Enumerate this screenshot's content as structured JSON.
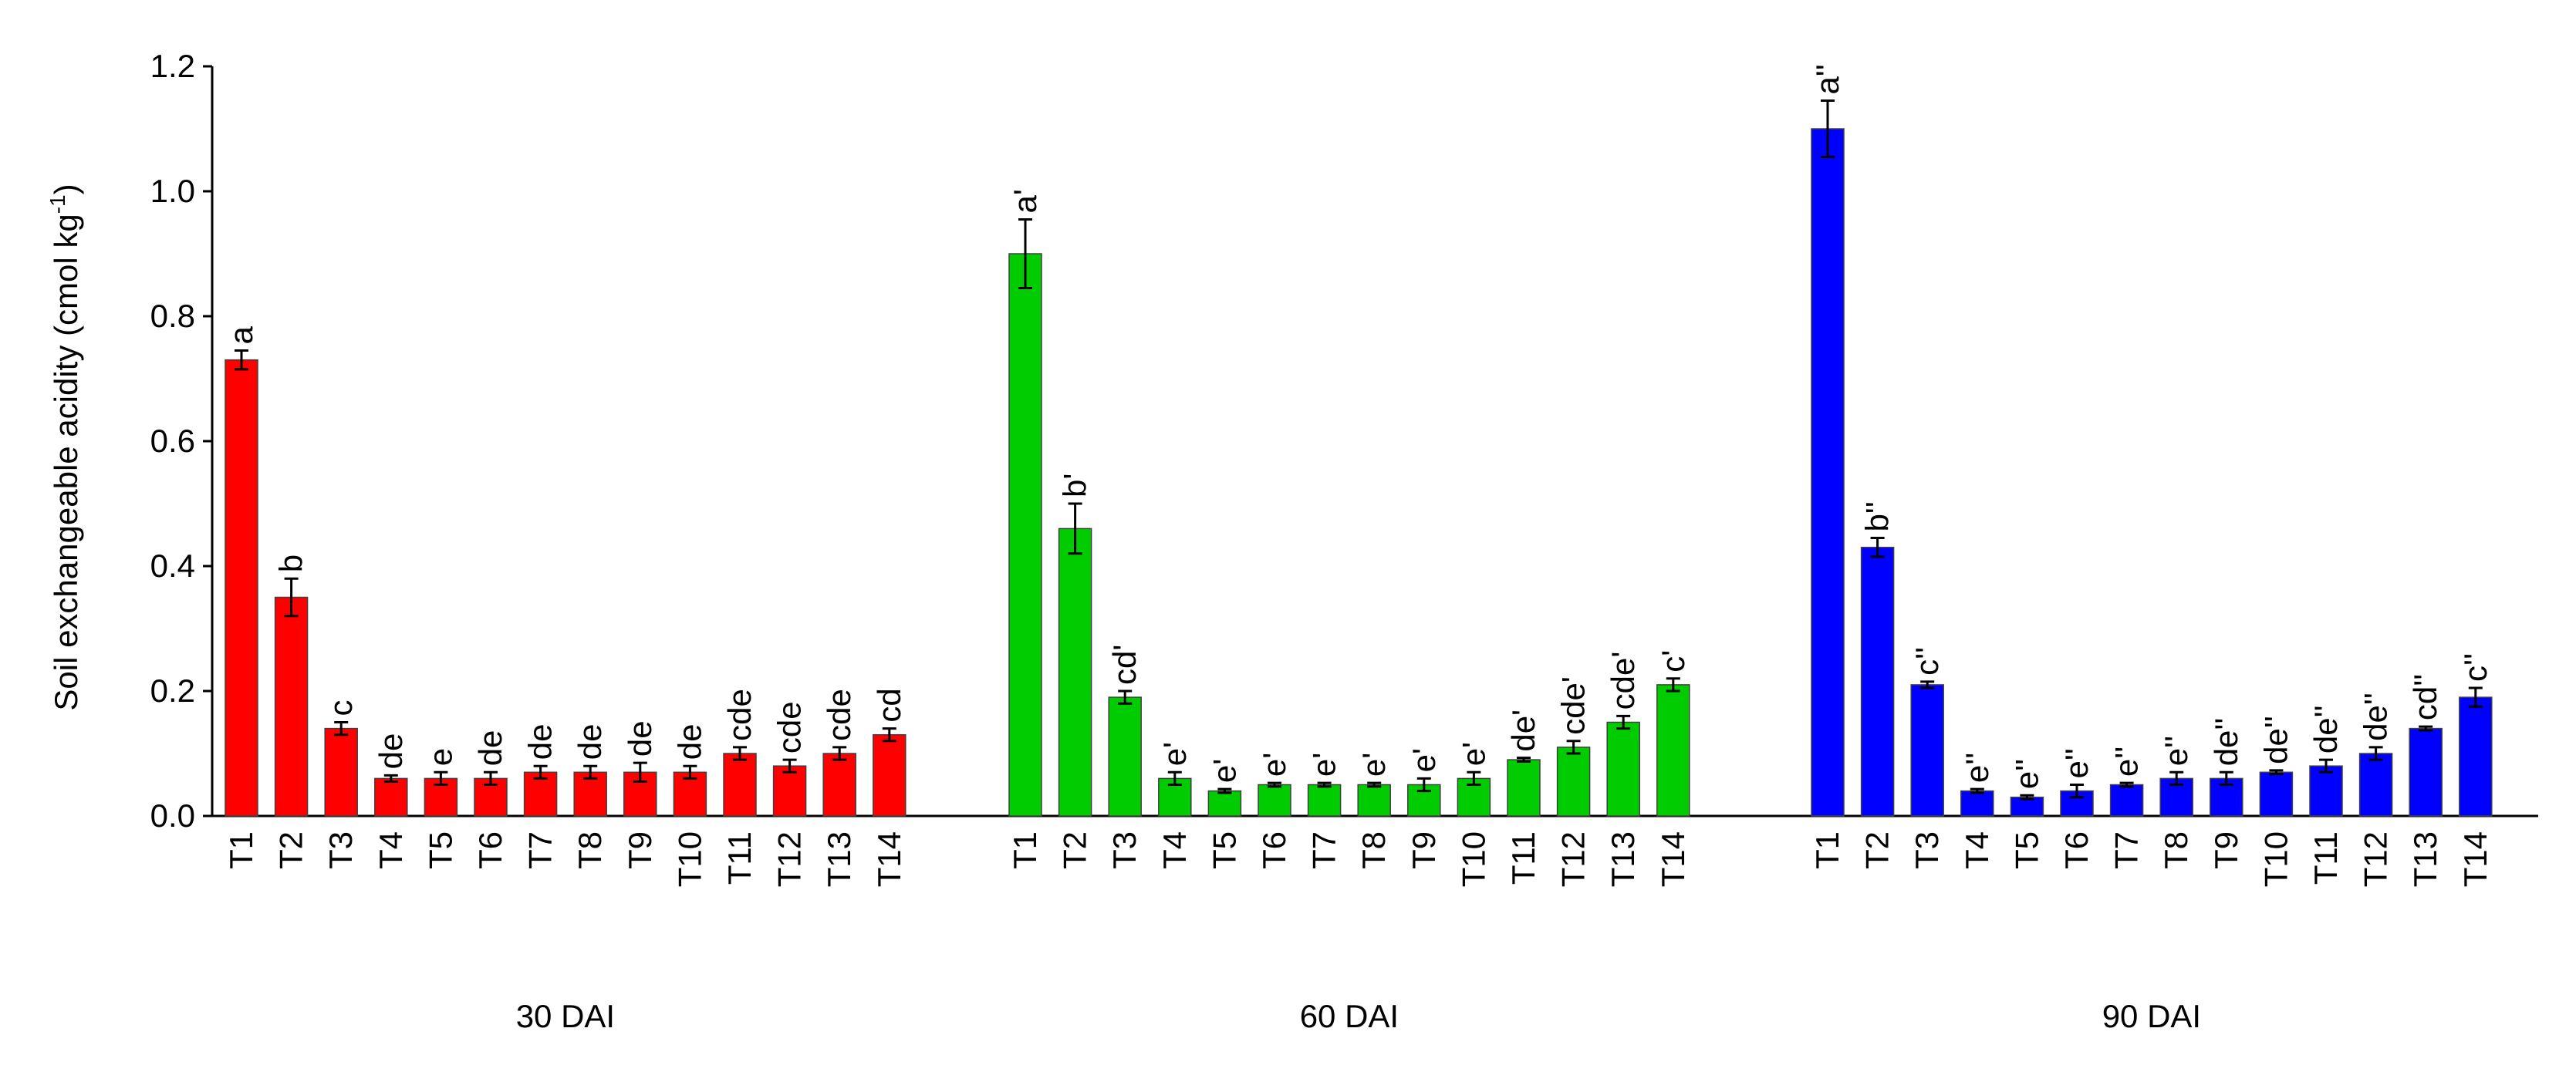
{
  "chart_data": {
    "type": "bar",
    "ylabel": "Soil exchangeable acidity (cmol kg",
    "ylabel_superscript": "-1",
    "ylabel_close": ")",
    "ylim": [
      0,
      1.2
    ],
    "yticks": [
      "0.0",
      "0.2",
      "0.4",
      "0.6",
      "0.8",
      "1.0",
      "1.2"
    ],
    "grid": false,
    "groups": [
      {
        "name": "30 DAI",
        "color": "#ff0000",
        "categories": [
          "T1",
          "T2",
          "T3",
          "T4",
          "T5",
          "T6",
          "T7",
          "T8",
          "T9",
          "T10",
          "T11",
          "T12",
          "T13",
          "T14"
        ],
        "values": [
          0.73,
          0.35,
          0.14,
          0.06,
          0.06,
          0.06,
          0.07,
          0.07,
          0.07,
          0.07,
          0.1,
          0.08,
          0.1,
          0.13
        ],
        "errors": [
          0.015,
          0.03,
          0.01,
          0.005,
          0.01,
          0.01,
          0.01,
          0.01,
          0.015,
          0.01,
          0.01,
          0.01,
          0.01,
          0.01
        ],
        "letters": [
          "a",
          "b",
          "c",
          "de",
          "e",
          "de",
          "de",
          "de",
          "de",
          "de",
          "cde",
          "cde",
          "cde",
          "cd"
        ]
      },
      {
        "name": "60 DAI",
        "color": "#00cc00",
        "categories": [
          "T1",
          "T2",
          "T3",
          "T4",
          "T5",
          "T6",
          "T7",
          "T8",
          "T9",
          "T10",
          "T11",
          "T12",
          "T13",
          "T14"
        ],
        "values": [
          0.9,
          0.46,
          0.19,
          0.06,
          0.04,
          0.05,
          0.05,
          0.05,
          0.05,
          0.06,
          0.09,
          0.11,
          0.15,
          0.21
        ],
        "errors": [
          0.055,
          0.04,
          0.01,
          0.01,
          0.003,
          0.003,
          0.003,
          0.003,
          0.01,
          0.01,
          0.003,
          0.01,
          0.01,
          0.01
        ],
        "letters": [
          "a'",
          "b'",
          "cd'",
          "e'",
          "e'",
          "e'",
          "e'",
          "e'",
          "e'",
          "e'",
          "de'",
          "cde'",
          "cde'",
          "c'"
        ]
      },
      {
        "name": "90 DAI",
        "color": "#0000ff",
        "categories": [
          "T1",
          "T2",
          "T3",
          "T4",
          "T5",
          "T6",
          "T7",
          "T8",
          "T9",
          "T10",
          "T11",
          "T12",
          "T13",
          "T14"
        ],
        "values": [
          1.1,
          0.43,
          0.21,
          0.04,
          0.03,
          0.04,
          0.05,
          0.06,
          0.06,
          0.07,
          0.08,
          0.1,
          0.14,
          0.19
        ],
        "errors": [
          0.045,
          0.015,
          0.005,
          0.003,
          0.003,
          0.01,
          0.003,
          0.01,
          0.01,
          0.003,
          0.01,
          0.01,
          0.003,
          0.015
        ],
        "letters": [
          "a''",
          "b''",
          "c''",
          "e''",
          "e''",
          "e''",
          "e''",
          "e''",
          "de''",
          "de''",
          "de''",
          "de''",
          "cd''",
          "c''"
        ]
      }
    ]
  }
}
